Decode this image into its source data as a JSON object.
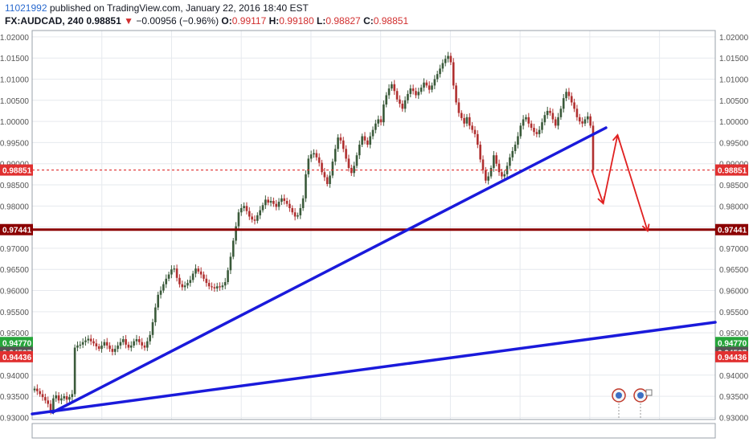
{
  "header": {
    "user_id": "11021992",
    "published_text": "published on TradingView.com, January 22, 2016 18:40 EST",
    "symbol": "FX:AUDCAD, 240",
    "last_price": "0.98851",
    "change_arrow": "▼",
    "change": "−0.00956 (−0.96%)",
    "o_label": "O:",
    "o_value": "0.99117",
    "h_label": "H:",
    "h_value": "0.99180",
    "l_label": "L:",
    "l_value": "0.98827",
    "c_label": "C:",
    "c_value": "0.98851"
  },
  "colors": {
    "up_candle": "#3a5a3a",
    "down_candle": "#b03030",
    "trendline": "#1a1adb",
    "projection": "#e02020",
    "support_line": "#8b0000",
    "grid": "#e6e9ee",
    "price_tag": "#e03030",
    "price_tag_green": "#26a63a",
    "price_tag_gray": "#555555",
    "support_tag": "#8b0000"
  },
  "chart_data": {
    "type": "candlestick",
    "title": "FX:AUDCAD, 240",
    "ylim": [
      0.9295,
      1.0215
    ],
    "y_ticks": [
      "1.02000",
      "1.01500",
      "1.01000",
      "1.00500",
      "1.00000",
      "0.99500",
      "0.99000",
      "0.98500",
      "0.98000",
      "0.97500",
      "0.97000",
      "0.96500",
      "0.96000",
      "0.95500",
      "0.95000",
      "0.94500",
      "0.94000",
      "0.93500",
      "0.93000"
    ],
    "close_series": [
      0.9368,
      0.9362,
      0.9355,
      0.9348,
      0.934,
      0.9332,
      0.9315,
      0.9345,
      0.9352,
      0.934,
      0.9345,
      0.935,
      0.9342,
      0.9348,
      0.9355,
      0.9465,
      0.947,
      0.9472,
      0.9478,
      0.9482,
      0.9486,
      0.948,
      0.9475,
      0.9468,
      0.9462,
      0.947,
      0.9478,
      0.947,
      0.9462,
      0.9455,
      0.9462,
      0.947,
      0.9478,
      0.9485,
      0.9472,
      0.9465,
      0.947,
      0.948,
      0.9485,
      0.9478,
      0.947,
      0.9465,
      0.948,
      0.9495,
      0.9525,
      0.956,
      0.959,
      0.96,
      0.9615,
      0.9628,
      0.9638,
      0.965,
      0.9652,
      0.963,
      0.9615,
      0.9608,
      0.9612,
      0.9618,
      0.9625,
      0.964,
      0.9652,
      0.9645,
      0.9638,
      0.9628,
      0.9618,
      0.961,
      0.9608,
      0.9605,
      0.961,
      0.9608,
      0.9612,
      0.962,
      0.9648,
      0.968,
      0.9718,
      0.9752,
      0.9785,
      0.9795,
      0.98,
      0.9788,
      0.9775,
      0.9768,
      0.9765,
      0.9778,
      0.979,
      0.9802,
      0.9815,
      0.9808,
      0.9812,
      0.9805,
      0.9798,
      0.981,
      0.9818,
      0.9812,
      0.9805,
      0.9795,
      0.9785,
      0.9775,
      0.9778,
      0.9795,
      0.9818,
      0.9875,
      0.9912,
      0.9922,
      0.9925,
      0.9915,
      0.9902,
      0.988,
      0.9868,
      0.9852,
      0.9872,
      0.9905,
      0.9935,
      0.9962,
      0.9955,
      0.9935,
      0.9912,
      0.989,
      0.9878,
      0.9895,
      0.992,
      0.9945,
      0.9965,
      0.9955,
      0.9945,
      0.9965,
      0.998,
      0.9995,
      1.0005,
      0.9998,
      1.004,
      1.0062,
      1.0078,
      1.0088,
      1.0072,
      1.0052,
      1.0042,
      1.003,
      1.005,
      1.0065,
      1.0078,
      1.0072,
      1.0062,
      1.007,
      1.008,
      1.0092,
      1.0085,
      1.0075,
      1.0085,
      1.01,
      1.0112,
      1.0125,
      1.0138,
      1.0148,
      1.0155,
      1.014,
      1.0085,
      1.0045,
      1.002,
      1.0008,
      0.9995,
      1.001,
      0.999,
      0.998,
      0.997,
      0.9945,
      0.991,
      0.9885,
      0.986,
      0.987,
      0.989,
      0.992,
      0.99,
      0.988,
      0.987,
      0.9875,
      0.9895,
      0.9915,
      0.993,
      0.9945,
      0.9965,
      0.999,
      1.0005,
      1.001,
      0.9995,
      0.9985,
      0.9975,
      0.997,
      0.998,
      0.9998,
      1.0015,
      1.0025,
      1.002,
      1.0005,
      0.999,
      1.001,
      1.003,
      1.0055,
      1.007,
      1.006,
      1.0045,
      1.003,
      1.001,
      1.0,
      0.9995,
      1.0005,
      1.0012,
      0.999,
      0.9885
    ],
    "annotations": {
      "current_price": {
        "value": 0.98851,
        "label": "0.98851"
      },
      "support_level": {
        "value": 0.97441,
        "label": "0.97441"
      },
      "extra_price_labels": [
        {
          "value": 0.9477,
          "label": "0.94770",
          "color": "green"
        },
        {
          "value": 0.94537,
          "label": "0.94537",
          "color": "gray"
        },
        {
          "value": 0.94436,
          "label": "0.94436",
          "color": "red"
        }
      ],
      "trendlines": [
        {
          "from": [
            0.03,
            0.9312
          ],
          "to": [
            0.84,
            0.9985
          ]
        },
        {
          "from": [
            0.0,
            0.9308
          ],
          "to": [
            1.0,
            0.9525
          ]
        }
      ],
      "projection_path": [
        [
          0.819,
          0.9885
        ],
        [
          0.836,
          0.9806
        ],
        [
          0.857,
          0.9968
        ],
        [
          0.901,
          0.9741
        ]
      ]
    }
  }
}
